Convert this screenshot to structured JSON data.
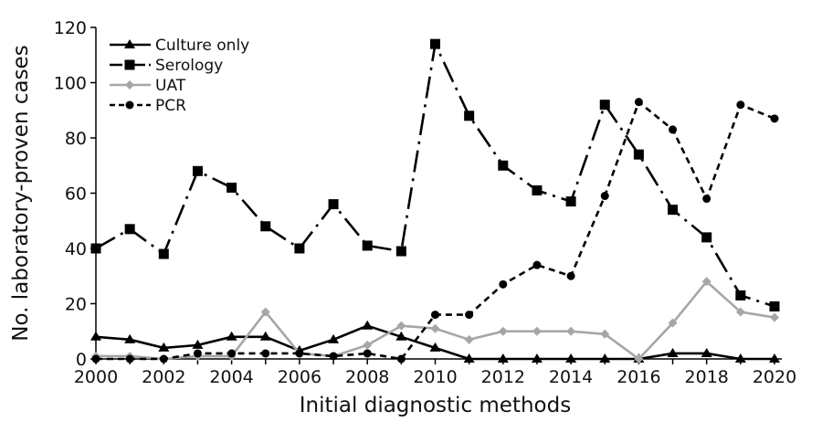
{
  "chart_data": {
    "type": "line",
    "xlabel": "Initial diagnostic methods",
    "ylabel": "No. laboratory-proven cases",
    "xlim": [
      2000,
      2020
    ],
    "ylim": [
      0,
      120
    ],
    "x_ticks": [
      2000,
      2002,
      2004,
      2006,
      2008,
      2010,
      2012,
      2014,
      2016,
      2018,
      2020
    ],
    "x_tick_labels": [
      "2000",
      "2002",
      "2004",
      "2006",
      "2008",
      "2010",
      "2012",
      "2014",
      "2016",
      "2018",
      "2020"
    ],
    "y_ticks": [
      0,
      20,
      40,
      60,
      80,
      100,
      120
    ],
    "y_tick_labels": [
      "0",
      "20",
      "40",
      "60",
      "80",
      "100",
      "120"
    ],
    "grid": false,
    "legend_position": "top-left",
    "x": [
      2000,
      2001,
      2002,
      2003,
      2004,
      2005,
      2006,
      2007,
      2008,
      2009,
      2010,
      2011,
      2012,
      2013,
      2014,
      2015,
      2016,
      2017,
      2018,
      2019,
      2020
    ],
    "series": [
      {
        "name": "Culture only",
        "values": [
          8,
          7,
          4,
          5,
          8,
          8,
          3,
          7,
          12,
          8,
          4,
          0,
          0,
          0,
          0,
          0,
          0,
          2,
          2,
          0,
          0
        ],
        "color": "#000000",
        "dash": "solid",
        "marker": "triangle"
      },
      {
        "name": "Serology",
        "values": [
          40,
          47,
          38,
          68,
          62,
          48,
          40,
          56,
          41,
          39,
          114,
          88,
          70,
          61,
          57,
          92,
          74,
          54,
          44,
          23,
          19
        ],
        "color": "#000000",
        "dash": "dash-dot",
        "marker": "square"
      },
      {
        "name": "UAT",
        "values": [
          1,
          1,
          0,
          1,
          1,
          17,
          2,
          1,
          5,
          12,
          11,
          7,
          10,
          10,
          10,
          9,
          0,
          13,
          28,
          17,
          15
        ],
        "color": "#a6a6a6",
        "dash": "solid",
        "marker": "diamond"
      },
      {
        "name": "PCR",
        "values": [
          0,
          0,
          0,
          2,
          2,
          2,
          2,
          1,
          2,
          0,
          16,
          16,
          27,
          34,
          30,
          59,
          93,
          83,
          58,
          92,
          87
        ],
        "color": "#000000",
        "dash": "dashed",
        "marker": "circle"
      }
    ]
  }
}
